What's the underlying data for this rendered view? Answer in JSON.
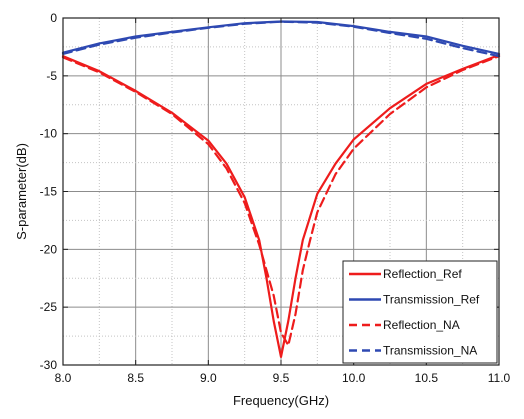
{
  "chart_data": {
    "type": "line",
    "xlabel": "Frequency(GHz)",
    "ylabel": "S-parameter(dB)",
    "xlim": [
      8.0,
      11.0
    ],
    "ylim": [
      -30,
      0
    ],
    "xticks": [
      8.0,
      8.5,
      9.0,
      9.5,
      10.0,
      10.5,
      11.0
    ],
    "xtick_labels": [
      "8.0",
      "8.5",
      "9.0",
      "9.5",
      "10.0",
      "10.5",
      "11.0"
    ],
    "yticks": [
      0,
      -5,
      -10,
      -15,
      -20,
      -25,
      -30
    ],
    "ytick_labels": [
      "0",
      "-5",
      "-10",
      "-15",
      "-20",
      "-25",
      "-30"
    ],
    "minor_x_step": 0.25,
    "minor_y_step": 2.5,
    "grid": true,
    "legend_position": "bottom-right",
    "series": [
      {
        "name": "Reflection_Ref",
        "color": "#ee1c1c",
        "dash": "solid",
        "x": [
          8.0,
          8.25,
          8.5,
          8.75,
          9.0,
          9.125,
          9.25,
          9.35,
          9.4,
          9.45,
          9.5,
          9.55,
          9.6,
          9.65,
          9.75,
          9.875,
          10.0,
          10.25,
          10.5,
          10.75,
          11.0
        ],
        "y": [
          -3.3,
          -4.6,
          -6.3,
          -8.2,
          -10.6,
          -12.6,
          -15.5,
          -19.2,
          -22.5,
          -26.2,
          -29.3,
          -26.2,
          -22.5,
          -19.2,
          -15.2,
          -12.6,
          -10.5,
          -7.8,
          -5.7,
          -4.4,
          -3.2
        ]
      },
      {
        "name": "Transmission_Ref",
        "color": "#2e49b2",
        "dash": "solid",
        "x": [
          8.0,
          8.25,
          8.5,
          8.75,
          9.0,
          9.25,
          9.5,
          9.75,
          10.0,
          10.25,
          10.5,
          10.75,
          11.0
        ],
        "y": [
          -3.0,
          -2.2,
          -1.6,
          -1.2,
          -0.8,
          -0.45,
          -0.3,
          -0.35,
          -0.7,
          -1.2,
          -1.6,
          -2.4,
          -3.1
        ]
      },
      {
        "name": "Reflection_NA",
        "color": "#ee1c1c",
        "dash": "dashed",
        "x": [
          8.0,
          8.25,
          8.5,
          8.75,
          9.0,
          9.125,
          9.25,
          9.35,
          9.45,
          9.5,
          9.55,
          9.6,
          9.65,
          9.7,
          9.75,
          9.875,
          10.0,
          10.25,
          10.5,
          10.75,
          11.0
        ],
        "y": [
          -3.4,
          -4.7,
          -6.4,
          -8.3,
          -10.9,
          -13.0,
          -16.0,
          -19.6,
          -24.0,
          -27.2,
          -28.3,
          -25.6,
          -21.8,
          -19.2,
          -16.8,
          -13.5,
          -11.3,
          -8.3,
          -6.0,
          -4.5,
          -3.3
        ]
      },
      {
        "name": "Transmission_NA",
        "color": "#2e49b2",
        "dash": "dashed",
        "x": [
          8.0,
          8.25,
          8.5,
          8.75,
          9.0,
          9.25,
          9.5,
          9.75,
          10.0,
          10.25,
          10.5,
          10.75,
          11.0
        ],
        "y": [
          -3.1,
          -2.3,
          -1.7,
          -1.25,
          -0.85,
          -0.5,
          -0.32,
          -0.4,
          -0.75,
          -1.3,
          -1.8,
          -2.6,
          -3.3
        ]
      }
    ]
  }
}
